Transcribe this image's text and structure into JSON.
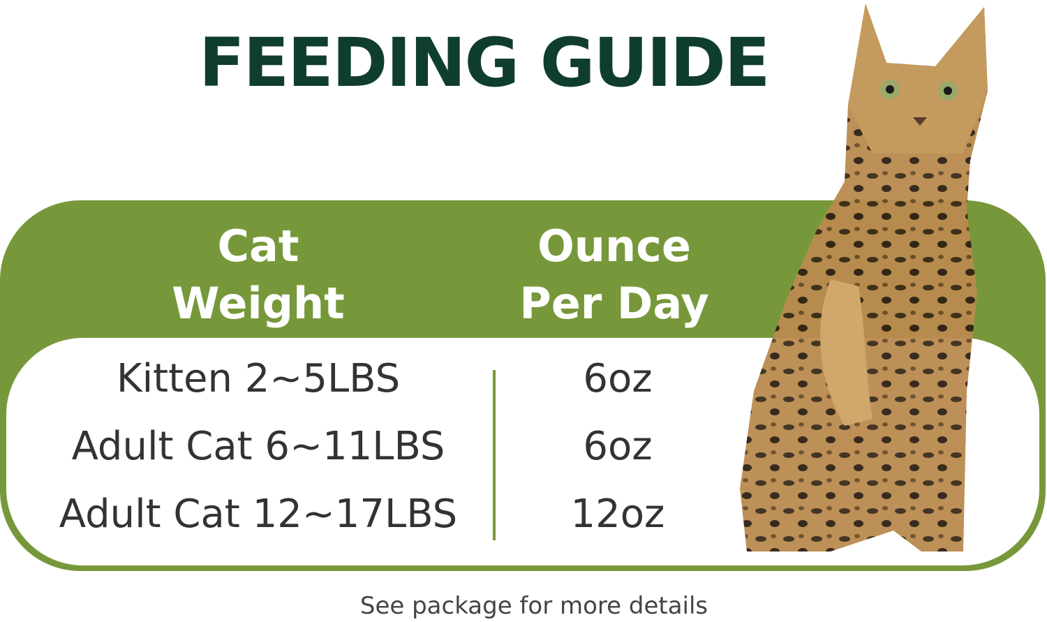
{
  "title": "FEEDING GUIDE",
  "table": {
    "headers": [
      {
        "line1": "Cat",
        "line2": "Weight"
      },
      {
        "line1": "Ounce",
        "line2": "Per Day"
      }
    ],
    "rows": [
      {
        "weight": "Kitten 2~5LBS",
        "amount": "6oz"
      },
      {
        "weight": "Adult Cat 6~11LBS",
        "amount": "6oz"
      },
      {
        "weight": "Adult Cat 12~17LBS",
        "amount": "12oz"
      }
    ]
  },
  "footer": "See package for more details",
  "colors": {
    "title": "#0f3d2e",
    "accent_green": "#77983a",
    "text": "#333333"
  },
  "image": "bengal-cat-photo"
}
